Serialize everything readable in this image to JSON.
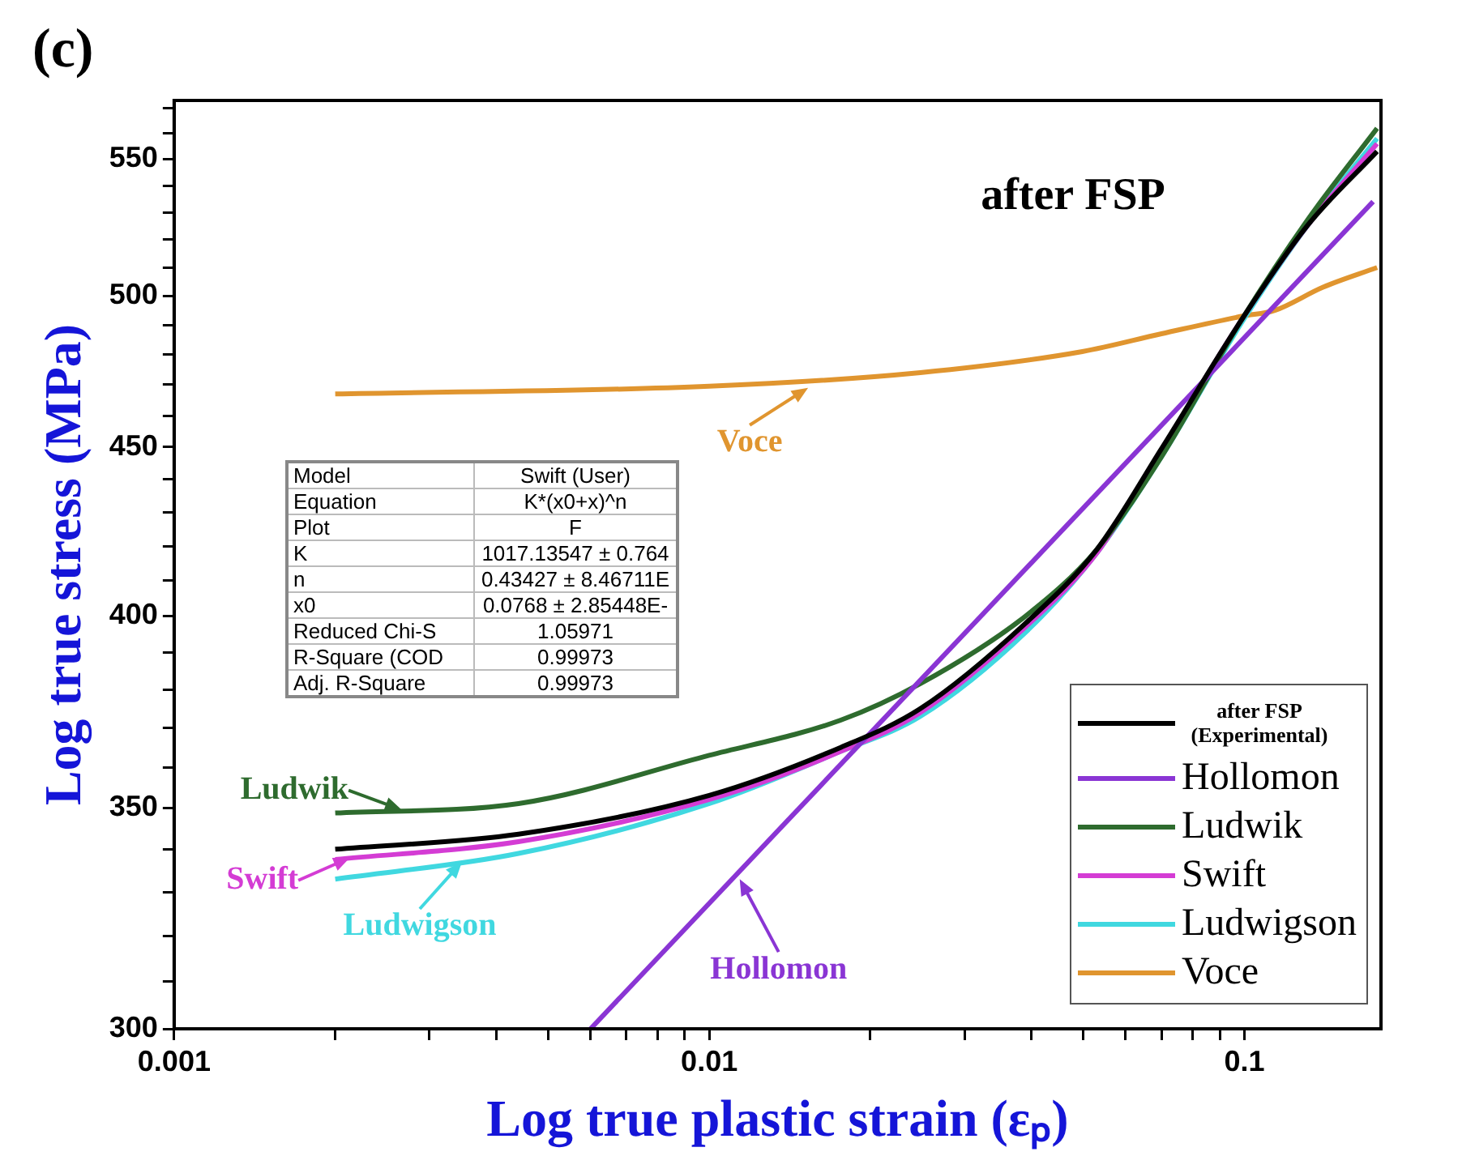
{
  "chart_data": {
    "type": "line",
    "title": "after FSP",
    "xlabel": "Log true plastic strain (εₚ)",
    "ylabel": "Log true stress (MPa)",
    "log": "xy",
    "legend": "bottom right",
    "marker": "none",
    "line_style": "solid",
    "xlim": [
      0.001,
      0.18
    ],
    "ylim": [
      300,
      573
    ],
    "xticks": [
      0.001,
      {
        "value": 0.002,
        "label": null
      },
      {
        "value": 0.003,
        "label": null
      },
      {
        "value": 0.004,
        "label": null
      },
      {
        "value": 0.005,
        "label": null
      },
      {
        "value": 0.006,
        "label": null
      },
      {
        "value": 0.007,
        "label": null
      },
      {
        "value": 0.008,
        "label": null
      },
      {
        "value": 0.009,
        "label": null
      },
      0.01,
      {
        "value": 0.02,
        "label": null
      },
      {
        "value": 0.03,
        "label": null
      },
      {
        "value": 0.04,
        "label": null
      },
      {
        "value": 0.05,
        "label": null
      },
      {
        "value": 0.06,
        "label": null
      },
      {
        "value": 0.07,
        "label": null
      },
      {
        "value": 0.08,
        "label": null
      },
      {
        "value": 0.09,
        "label": null
      },
      0.1
    ],
    "yticks": [
      300,
      {
        "value": 310,
        "label": null
      },
      {
        "value": 320,
        "label": null
      },
      {
        "value": 330,
        "label": null
      },
      {
        "value": 340,
        "label": null
      },
      350,
      {
        "value": 360,
        "label": null
      },
      {
        "value": 370,
        "label": null
      },
      {
        "value": 380,
        "label": null
      },
      {
        "value": 390,
        "label": null
      },
      400,
      {
        "value": 410,
        "label": null
      },
      {
        "value": 420,
        "label": null
      },
      {
        "value": 430,
        "label": null
      },
      {
        "value": 440,
        "label": null
      },
      450,
      {
        "value": 460,
        "label": null
      },
      {
        "value": 470,
        "label": null
      },
      {
        "value": 480,
        "label": null
      },
      {
        "value": 490,
        "label": null
      },
      500,
      {
        "value": 510,
        "label": null
      },
      {
        "value": 520,
        "label": null
      },
      {
        "value": 530,
        "label": null
      },
      {
        "value": 540,
        "label": null
      },
      550,
      {
        "value": 560,
        "label": null
      },
      {
        "value": 570,
        "label": null
      }
    ],
    "x": [
      0.002,
      0.0044,
      0.01,
      0.0176,
      0.0248,
      0.039,
      0.053,
      0.07,
      0.099,
      0.131,
      0.177
    ],
    "series": [
      {
        "name": "after FSP (Experimental)",
        "color": "#000000",
        "values": [
          340,
          343.6,
          353,
          365,
          375,
          398,
          419,
          449.5,
          492,
          525,
          553
        ]
      },
      {
        "name": "Hollomon",
        "color": "#8a35d4",
        "x": [
          0.006,
          0.174
        ],
        "values": [
          300,
          534
        ]
      },
      {
        "name": "Ludwik",
        "color": "#2e6b2e",
        "values": [
          348.7,
          351,
          363,
          372,
          381.6,
          400,
          419,
          447,
          492,
          527,
          562
        ]
      },
      {
        "name": "Swift",
        "color": "#d43cd4",
        "values": [
          337.6,
          341.8,
          352,
          364,
          374,
          397,
          418,
          449,
          492,
          525,
          556
        ]
      },
      {
        "name": "Ludwigson",
        "color": "#40d8e0",
        "values": [
          333,
          339,
          351,
          364,
          373,
          395.5,
          418,
          447,
          491,
          525,
          558
        ]
      },
      {
        "name": "Voce",
        "color": "#e0952f",
        "x": [
          0.002,
          0.01,
          0.0248,
          0.0498,
          0.07,
          0.0991,
          0.114,
          0.14,
          0.177
        ],
        "values": [
          467,
          469.5,
          474,
          481,
          487,
          493,
          495,
          503,
          510
        ]
      }
    ],
    "annotations": [
      "(c)",
      "Model",
      "Swift (User)",
      "Equation",
      "K*(x0+x)^n",
      "Plot",
      "F",
      "K",
      "1017.13547 ± 0.764",
      "n",
      "0.43427 ± 8.46711E",
      "x0",
      "0.0768 ± 2.85448E-",
      "Reduced Chi-S",
      "1.05971",
      "R-Square (COD",
      "0.99973",
      "Adj. R-Square",
      "0.99973",
      {
        "text": "Voce",
        "x": 0.0153,
        "y": 469
      },
      {
        "text": "Ludwik",
        "x": 0.00266,
        "y": 349.5
      },
      {
        "text": "Swift",
        "x": 0.00213,
        "y": 338
      },
      {
        "text": "Ludwigson",
        "x": 0.00345,
        "y": 337
      },
      {
        "text": "Hollomon",
        "x": 0.0114,
        "y": 333
      }
    ]
  }
}
